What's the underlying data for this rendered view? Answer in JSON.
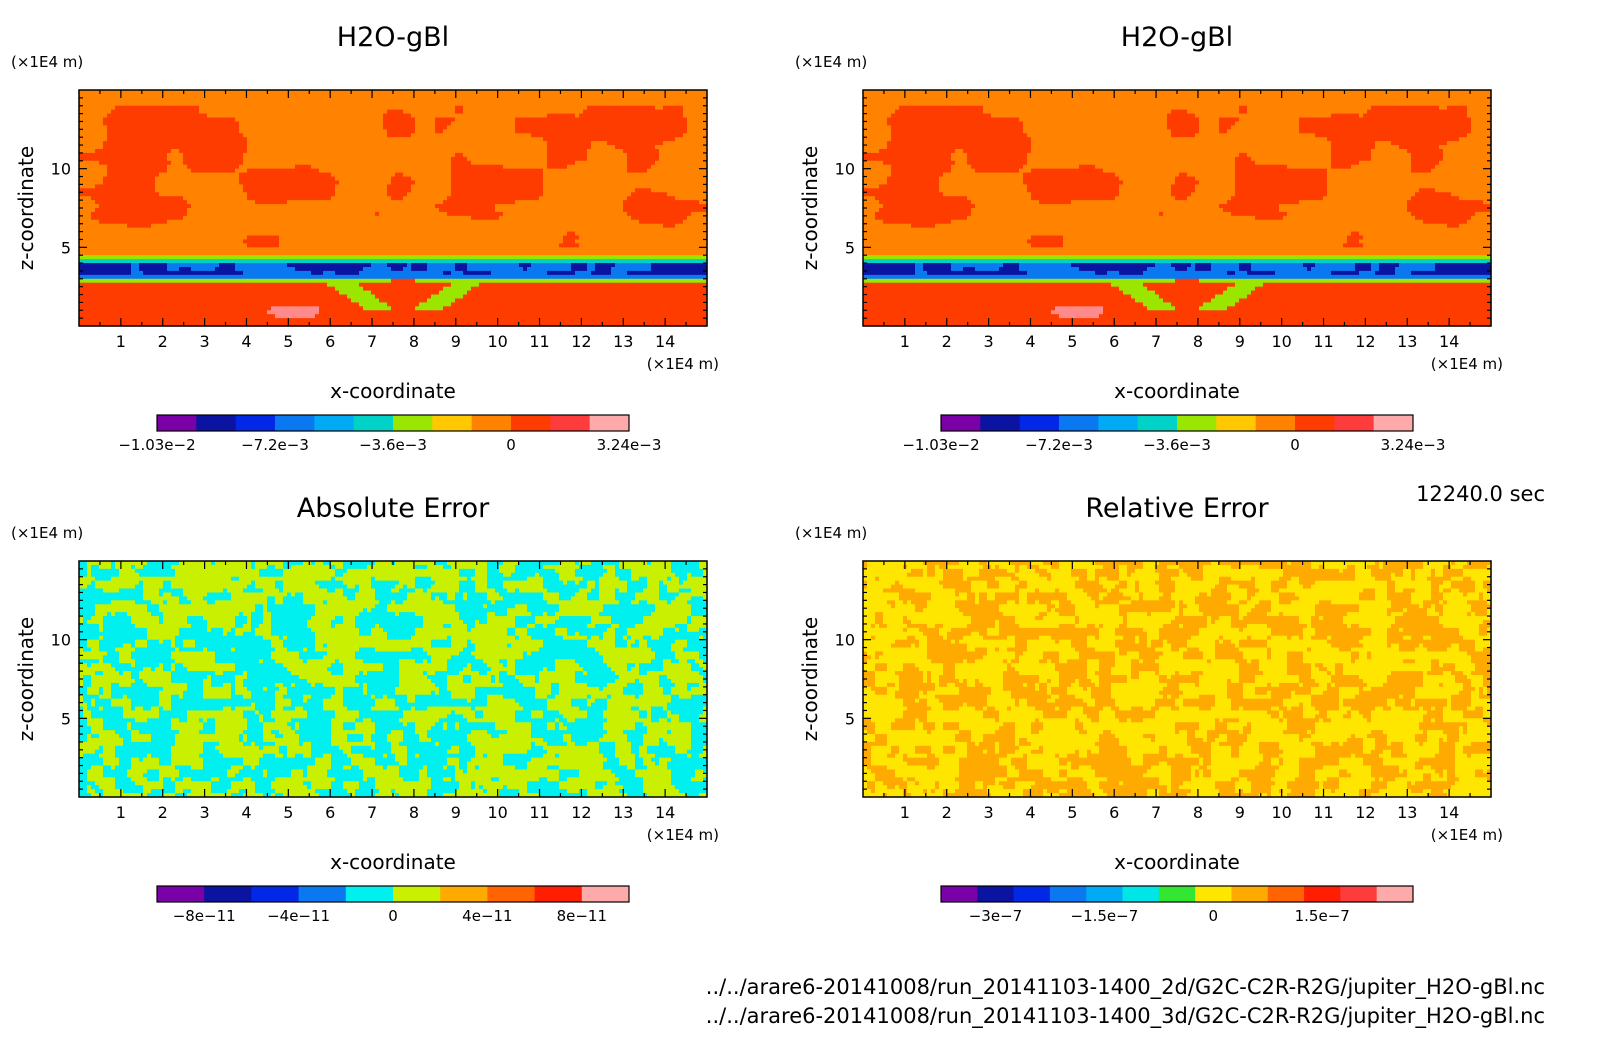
{
  "colors": {
    "bg": "#ffffff",
    "frame": "#000000",
    "rainbow": [
      "#7a00a8",
      "#0a14a0",
      "#0028e6",
      "#0a78f0",
      "#00aaf5",
      "#00d2c8",
      "#9be600",
      "#ffc800",
      "#ff8200",
      "#ff3c00",
      "#ff3c3c",
      "#ffaaaa"
    ]
  },
  "time_label": "12240.0 sec",
  "footer_lines": [
    "../../arare6-20141008/run_20141103-1400_2d/G2C-C2R-R2G/jupiter_H2O-gBl.nc",
    "../../arare6-20141008/run_20141103-1400_3d/G2C-C2R-R2G/jupiter_H2O-gBl.nc"
  ],
  "chart_data": [
    {
      "type": "heatmap",
      "title": "H2O-gBl",
      "xlabel": "x-coordinate",
      "ylabel": "z-coordinate",
      "x_unit": "(×1E4 m)",
      "y_unit": "(×1E4 m)",
      "xlim": [
        0,
        15
      ],
      "ylim": [
        0,
        15
      ],
      "x_ticks": [
        1,
        2,
        3,
        4,
        5,
        6,
        7,
        8,
        9,
        10,
        11,
        12,
        13,
        14
      ],
      "y_ticks": [
        5,
        10
      ],
      "pattern": "field",
      "colorbar": {
        "colors": [
          "#7a00a8",
          "#0a14a0",
          "#0028e6",
          "#0a78f0",
          "#00aaf5",
          "#00d2c8",
          "#9be600",
          "#ffc800",
          "#ff8200",
          "#ff3c00",
          "#ff3c3c",
          "#ffaaaa"
        ],
        "labels": [
          "−1.03e−2",
          "−7.2e−3",
          "−3.6e−3",
          "0",
          "3.24e−3"
        ],
        "label_positions": [
          0,
          3,
          6,
          9,
          12
        ]
      }
    },
    {
      "type": "heatmap",
      "title": "H2O-gBl",
      "xlabel": "x-coordinate",
      "ylabel": "z-coordinate",
      "x_unit": "(×1E4 m)",
      "y_unit": "(×1E4 m)",
      "xlim": [
        0,
        15
      ],
      "ylim": [
        0,
        15
      ],
      "x_ticks": [
        1,
        2,
        3,
        4,
        5,
        6,
        7,
        8,
        9,
        10,
        11,
        12,
        13,
        14
      ],
      "y_ticks": [
        5,
        10
      ],
      "pattern": "field",
      "colorbar": {
        "colors": [
          "#7a00a8",
          "#0a14a0",
          "#0028e6",
          "#0a78f0",
          "#00aaf5",
          "#00d2c8",
          "#9be600",
          "#ffc800",
          "#ff8200",
          "#ff3c00",
          "#ff3c3c",
          "#ffaaaa"
        ],
        "labels": [
          "−1.03e−2",
          "−7.2e−3",
          "−3.6e−3",
          "0",
          "3.24e−3"
        ],
        "label_positions": [
          0,
          3,
          6,
          9,
          12
        ]
      }
    },
    {
      "type": "heatmap",
      "title": "Absolute Error",
      "xlabel": "x-coordinate",
      "ylabel": "z-coordinate",
      "x_unit": "(×1E4 m)",
      "y_unit": "(×1E4 m)",
      "xlim": [
        0,
        15
      ],
      "ylim": [
        0,
        15
      ],
      "x_ticks": [
        1,
        2,
        3,
        4,
        5,
        6,
        7,
        8,
        9,
        10,
        11,
        12,
        13,
        14
      ],
      "y_ticks": [
        5,
        10
      ],
      "pattern": "abs",
      "colorbar": {
        "colors": [
          "#7a00a8",
          "#0a14a0",
          "#0028e6",
          "#0a78f0",
          "#00f0f0",
          "#c8f000",
          "#ffaa00",
          "#ff6400",
          "#ff1e00",
          "#ffaaaa"
        ],
        "labels": [
          "−8e−11",
          "−4e−11",
          "0",
          "4e−11",
          "8e−11"
        ],
        "label_positions": [
          1,
          3,
          5,
          7,
          9
        ]
      }
    },
    {
      "type": "heatmap",
      "title": "Relative Error",
      "xlabel": "x-coordinate",
      "ylabel": "z-coordinate",
      "x_unit": "(×1E4 m)",
      "y_unit": "(×1E4 m)",
      "xlim": [
        0,
        15
      ],
      "ylim": [
        0,
        15
      ],
      "x_ticks": [
        1,
        2,
        3,
        4,
        5,
        6,
        7,
        8,
        9,
        10,
        11,
        12,
        13,
        14
      ],
      "y_ticks": [
        5,
        10
      ],
      "pattern": "rel",
      "colorbar": {
        "colors": [
          "#7a00a8",
          "#0a14a0",
          "#0028e6",
          "#0a78f0",
          "#00aaf5",
          "#00e6e6",
          "#32e632",
          "#ffe600",
          "#ffaa00",
          "#ff6400",
          "#ff1e00",
          "#ff3c3c",
          "#ffaaaa"
        ],
        "labels": [
          "−3e−7",
          "−1.5e−7",
          "0",
          "1.5e−7"
        ],
        "label_positions": [
          1.5,
          4.5,
          7.5,
          10.5
        ]
      }
    }
  ]
}
